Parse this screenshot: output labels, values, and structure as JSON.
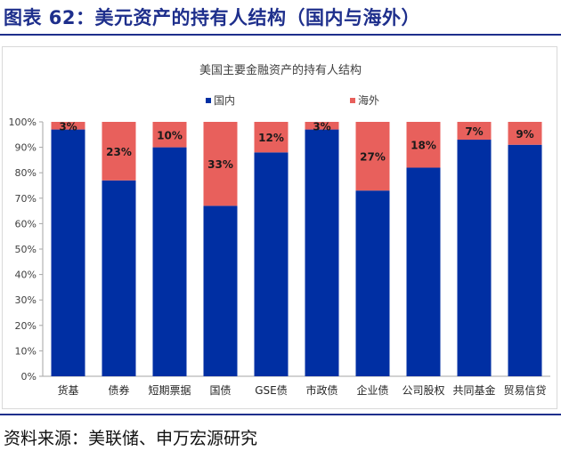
{
  "figure_title": "图表 62：美元资产的持有人结构（国内与海外）",
  "source_note": "资料来源：美联储、申万宏源研究",
  "colors": {
    "domestic": "#002fa3",
    "foreign": "#e8605c",
    "title_blue": "#1e2f8c"
  },
  "chart_data": {
    "type": "bar",
    "stacked": true,
    "title": "美国主要金融资产的持有人结构",
    "categories": [
      "货基",
      "债券",
      "短期票据",
      "国债",
      "GSE债",
      "市政债",
      "企业债",
      "公司股权",
      "共同基金",
      "贸易信贷"
    ],
    "series": [
      {
        "name": "国内",
        "values": [
          97,
          77,
          90,
          67,
          88,
          97,
          73,
          82,
          93,
          91
        ]
      },
      {
        "name": "海外",
        "values": [
          3,
          23,
          10,
          33,
          12,
          3,
          27,
          18,
          7,
          9
        ]
      }
    ],
    "data_labels": [
      "3%",
      "23%",
      "10%",
      "33%",
      "12%",
      "3%",
      "27%",
      "18%",
      "7%",
      "9%"
    ],
    "yticks": [
      "0%",
      "10%",
      "20%",
      "30%",
      "40%",
      "50%",
      "60%",
      "70%",
      "80%",
      "90%",
      "100%"
    ],
    "ylim": [
      0,
      100
    ],
    "legend_position": "top",
    "grid": false
  }
}
